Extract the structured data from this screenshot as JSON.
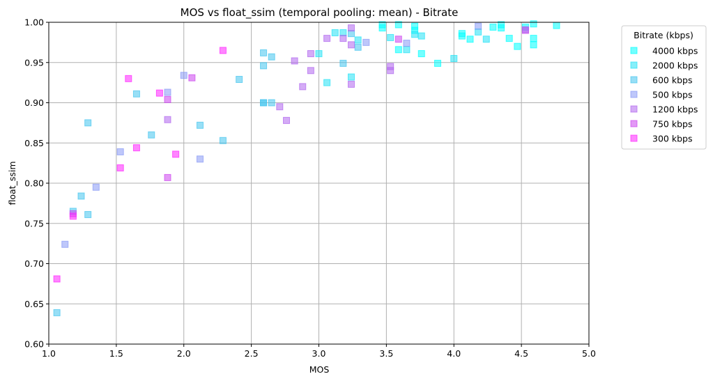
{
  "chart_data": {
    "type": "scatter",
    "title": "MOS vs float_ssim (temporal pooling: mean) - Bitrate",
    "xlabel": "MOS",
    "ylabel": "float_ssim",
    "xlim": [
      1.0,
      5.0
    ],
    "ylim": [
      0.6,
      1.0
    ],
    "xticks": [
      "1.0",
      "1.5",
      "2.0",
      "2.5",
      "3.0",
      "3.5",
      "4.0",
      "4.5",
      "5.0"
    ],
    "yticks": [
      "0.60",
      "0.65",
      "0.70",
      "0.75",
      "0.80",
      "0.85",
      "0.90",
      "0.95",
      "1.00"
    ],
    "grid": true,
    "legend_title": "Bitrate (kbps)",
    "legend_position": "outside-right-top",
    "marker": "square",
    "series": [
      {
        "name": "4000 kbps",
        "color": "#00ffff",
        "points": [
          [
            3.47,
            0.993
          ],
          [
            3.47,
            0.997
          ],
          [
            3.59,
            0.966
          ],
          [
            3.59,
            0.997
          ],
          [
            3.71,
            0.99
          ],
          [
            3.71,
            0.995
          ],
          [
            3.76,
            0.961
          ],
          [
            3.88,
            0.949
          ],
          [
            4.06,
            0.983
          ],
          [
            4.06,
            0.986
          ],
          [
            4.29,
            0.994
          ],
          [
            4.35,
            0.993
          ],
          [
            4.35,
            0.997
          ],
          [
            4.41,
            0.98
          ],
          [
            4.47,
            0.97
          ],
          [
            4.53,
            0.994
          ],
          [
            4.59,
            0.972
          ],
          [
            4.59,
            0.98
          ],
          [
            4.59,
            0.998
          ],
          [
            4.76,
            0.996
          ],
          [
            4.12,
            0.979
          ]
        ]
      },
      {
        "name": "2000 kbps",
        "color": "#22e2f5",
        "points": [
          [
            3.0,
            0.961
          ],
          [
            3.06,
            0.925
          ],
          [
            3.12,
            0.987
          ],
          [
            3.18,
            0.987
          ],
          [
            3.24,
            0.932
          ],
          [
            3.29,
            0.978
          ],
          [
            3.53,
            0.981
          ],
          [
            3.65,
            0.966
          ],
          [
            3.71,
            0.985
          ],
          [
            3.76,
            0.983
          ],
          [
            4.0,
            0.955
          ],
          [
            4.18,
            0.988
          ],
          [
            4.24,
            0.979
          ]
        ]
      },
      {
        "name": "600 kbps",
        "color": "#44c4ee",
        "points": [
          [
            1.06,
            0.639
          ],
          [
            1.18,
            0.765
          ],
          [
            1.24,
            0.784
          ],
          [
            1.29,
            0.761
          ],
          [
            1.29,
            0.875
          ],
          [
            1.65,
            0.911
          ],
          [
            1.76,
            0.86
          ],
          [
            2.12,
            0.872
          ],
          [
            2.29,
            0.853
          ],
          [
            2.41,
            0.929
          ],
          [
            2.59,
            0.9
          ],
          [
            2.59,
            0.9
          ],
          [
            2.59,
            0.946
          ],
          [
            2.59,
            0.962
          ],
          [
            2.65,
            0.9
          ],
          [
            2.65,
            0.957
          ],
          [
            3.18,
            0.949
          ],
          [
            3.24,
            0.986
          ],
          [
            3.29,
            0.969
          ]
        ]
      },
      {
        "name": "500 kbps",
        "color": "#8899f5",
        "points": [
          [
            1.12,
            0.724
          ],
          [
            1.35,
            0.795
          ],
          [
            1.53,
            0.839
          ],
          [
            1.88,
            0.913
          ],
          [
            2.0,
            0.934
          ],
          [
            2.12,
            0.83
          ],
          [
            3.35,
            0.975
          ],
          [
            3.65,
            0.974
          ],
          [
            4.18,
            0.995
          ],
          [
            4.53,
            0.991
          ]
        ]
      },
      {
        "name": "1200 kbps",
        "color": "#b066ee",
        "points": [
          [
            1.88,
            0.879
          ],
          [
            2.71,
            0.895
          ],
          [
            2.76,
            0.878
          ],
          [
            2.82,
            0.952
          ],
          [
            2.88,
            0.92
          ],
          [
            2.94,
            0.94
          ],
          [
            2.94,
            0.961
          ],
          [
            3.06,
            0.98
          ],
          [
            3.18,
            0.98
          ],
          [
            3.24,
            0.923
          ],
          [
            3.24,
            0.972
          ],
          [
            3.24,
            0.993
          ],
          [
            3.53,
            0.94
          ],
          [
            3.53,
            0.945
          ]
        ]
      },
      {
        "name": "750 kbps",
        "color": "#cc44ee",
        "points": [
          [
            1.18,
            0.762
          ],
          [
            1.88,
            0.807
          ],
          [
            1.88,
            0.904
          ],
          [
            2.06,
            0.931
          ],
          [
            3.59,
            0.979
          ],
          [
            4.53,
            0.99
          ]
        ]
      },
      {
        "name": "300 kbps",
        "color": "#ff22ff",
        "points": [
          [
            1.06,
            0.681
          ],
          [
            1.18,
            0.759
          ],
          [
            1.53,
            0.819
          ],
          [
            1.59,
            0.93
          ],
          [
            1.65,
            0.844
          ],
          [
            1.82,
            0.912
          ],
          [
            1.94,
            0.836
          ],
          [
            2.29,
            0.965
          ]
        ]
      }
    ]
  }
}
